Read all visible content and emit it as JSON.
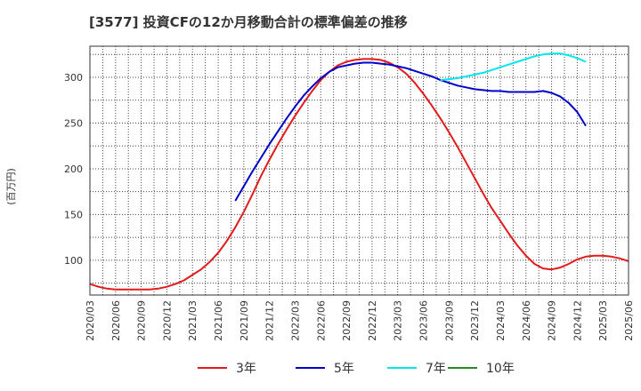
{
  "chart_data": {
    "type": "line",
    "title": "[3577]  投資CFの12か月移動合計の標準偏差の推移",
    "ylabel": "(百万円)",
    "xlabel": "",
    "ylim": [
      62,
      334
    ],
    "yticks": [
      100,
      150,
      200,
      250,
      300
    ],
    "x_ticks": [
      "2020/03",
      "2020/06",
      "2020/09",
      "2020/12",
      "2021/03",
      "2021/06",
      "2021/09",
      "2021/12",
      "2022/03",
      "2022/06",
      "2022/09",
      "2022/12",
      "2023/03",
      "2023/06",
      "2023/09",
      "2023/12",
      "2024/03",
      "2024/06",
      "2024/09",
      "2024/12",
      "2025/03",
      "2025/06"
    ],
    "x_start": "2020/03",
    "grid": true,
    "legend_position": "bottom",
    "series": [
      {
        "name": "3年",
        "color": "#e31a1c",
        "start": "2020/03",
        "values": [
          74,
          71,
          69,
          68,
          68,
          68,
          68,
          68,
          69,
          71,
          74,
          78,
          84,
          90,
          98,
          108,
          121,
          136,
          153,
          172,
          192,
          210,
          227,
          243,
          258,
          272,
          285,
          297,
          306,
          313,
          317,
          319,
          320,
          320,
          319,
          316,
          311,
          304,
          294,
          282,
          269,
          255,
          240,
          224,
          207,
          190,
          173,
          157,
          143,
          129,
          116,
          105,
          96,
          91,
          90,
          92,
          96,
          101,
          104,
          105,
          105,
          104,
          102,
          99
        ]
      },
      {
        "name": "5年",
        "color": "#0000cc",
        "start": "2021/08",
        "values": [
          165,
          181,
          197,
          212,
          227,
          241,
          255,
          268,
          280,
          290,
          299,
          306,
          311,
          313,
          315,
          316,
          316,
          315,
          314,
          312,
          310,
          307,
          304,
          301,
          297,
          294,
          291,
          289,
          287,
          286,
          285,
          285,
          284,
          284,
          284,
          284,
          285,
          283,
          279,
          272,
          262,
          247
        ]
      },
      {
        "name": "7年",
        "color": "#00e5ee",
        "start": "2023/08",
        "values": [
          297,
          298,
          299,
          301,
          303,
          305,
          308,
          311,
          314,
          317,
          320,
          323,
          325,
          326,
          326,
          324,
          321,
          317
        ]
      },
      {
        "name": "10年",
        "color": "#228b22",
        "start": "2025/03",
        "values": []
      }
    ]
  }
}
